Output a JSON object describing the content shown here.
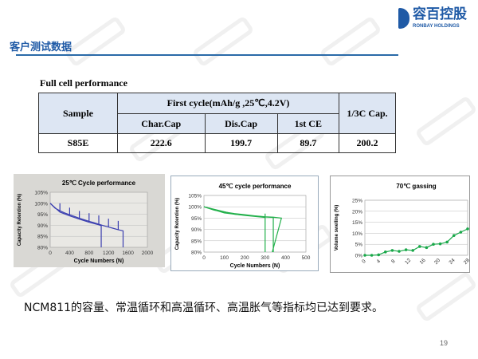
{
  "header": {
    "logo_cn": "容百控股",
    "logo_en": "RONBAY HOLDINGS",
    "title": "客户测试数据",
    "watermark": "CBEA"
  },
  "table": {
    "title": "Full cell performance",
    "headers": {
      "sample": "Sample",
      "group": "First cycle(mAh/g ,25℃,4.2V)",
      "char": "Char.Cap",
      "dis": "Dis.Cap",
      "ce": "1st CE",
      "third": "1/3C Cap."
    },
    "rows": [
      {
        "sample": "S85E",
        "char": "222.6",
        "dis": "199.7",
        "ce": "89.7",
        "third": "200.2"
      }
    ]
  },
  "chart_data": [
    {
      "type": "line",
      "title": "25℃ Cycle performance",
      "xlabel": "Cycle Numbers (N)",
      "ylabel": "Capacity Retention (%)",
      "xlim": [
        0,
        2000
      ],
      "ylim": [
        80,
        105
      ],
      "xticks": [
        "0",
        "400",
        "800",
        "1200",
        "1600",
        "2000"
      ],
      "yticks": [
        "80%",
        "85%",
        "90%",
        "95%",
        "100%",
        "105%"
      ],
      "color": "#3b3fb0",
      "series": [
        {
          "x": [
            0,
            100,
            200,
            300,
            400,
            500,
            600,
            700,
            800,
            900,
            1000,
            1100,
            1200,
            1300,
            1400,
            1500,
            1500
          ],
          "y": [
            100,
            97.8,
            96.6,
            95.6,
            94.8,
            94,
            93.2,
            92.5,
            91.8,
            91.2,
            90.5,
            89.8,
            89.2,
            88.6,
            88,
            87.5,
            80
          ]
        },
        {
          "x": [
            0,
            200,
            400,
            600,
            800,
            1000,
            1050,
            1050
          ],
          "y": [
            100,
            96,
            94.3,
            92.8,
            91.4,
            90.2,
            89.8,
            80
          ]
        }
      ],
      "spikes": {
        "x": [
          200,
          400,
          600,
          800,
          1000,
          1200,
          1400
        ],
        "y": [
          100,
          98,
          96.5,
          95.5,
          94.5,
          93,
          92
        ]
      }
    },
    {
      "type": "line",
      "title": "45℃ cycle performance",
      "xlabel": "Cycle Numbers (N)",
      "ylabel": "Capacity Retention (%)",
      "xlim": [
        0,
        500
      ],
      "ylim": [
        80,
        105
      ],
      "xticks": [
        "0",
        "100",
        "200",
        "300",
        "400",
        "500"
      ],
      "yticks": [
        "80%",
        "85%",
        "90%",
        "95%",
        "100%",
        "105%"
      ],
      "color": "#22b04b",
      "series": [
        {
          "x": [
            0,
            50,
            100,
            150,
            200,
            250,
            300,
            340,
            380,
            335
          ],
          "y": [
            100,
            98.5,
            97.7,
            97,
            96.5,
            96,
            95.6,
            95.4,
            95,
            80
          ]
        },
        {
          "x": [
            0,
            100,
            200,
            300,
            300,
            300
          ],
          "y": [
            100,
            97.3,
            96.2,
            95.3,
            97,
            80
          ]
        },
        {
          "x": [
            0,
            150,
            300,
            340,
            340
          ],
          "y": [
            100,
            96.7,
            95.5,
            95.3,
            80
          ]
        }
      ]
    },
    {
      "type": "line",
      "title": "70℃ gassing",
      "xlabel": "",
      "ylabel": "Volume swelling (%)",
      "xlim": [
        0,
        30
      ],
      "ylim": [
        0,
        25
      ],
      "xticks": [
        "0",
        "4",
        "8",
        "12",
        "16",
        "20",
        "24",
        "28"
      ],
      "yticks": [
        "0%",
        "5%",
        "10%",
        "15%",
        "20%",
        "25%"
      ],
      "color": "#1aa84a",
      "series": [
        {
          "x": [
            0,
            2,
            4,
            6,
            8,
            10,
            12,
            14,
            16,
            18,
            20,
            22,
            24,
            26,
            28,
            30
          ],
          "y": [
            0,
            0,
            0.2,
            1.5,
            2.2,
            1.8,
            2.5,
            2.2,
            4,
            3.5,
            5,
            5.2,
            6,
            9,
            10.5,
            12
          ]
        }
      ]
    }
  ],
  "footer": {
    "conclusion": "NCM811的容量、常温循环和高温循环、高温胀气等指标均已达到要求。",
    "page": "19"
  }
}
